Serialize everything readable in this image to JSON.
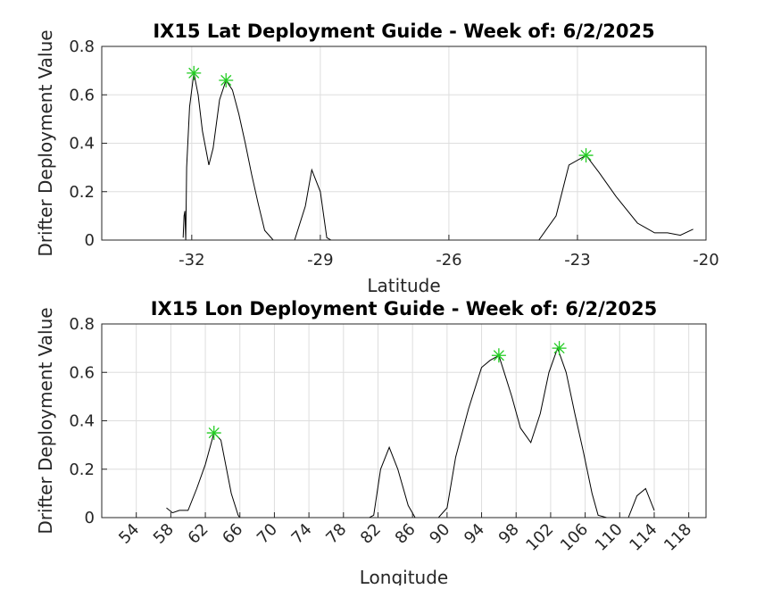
{
  "chart_data": [
    {
      "id": "lat",
      "type": "line",
      "title": "IX15 Lat Deployment Guide - Week of: 6/2/2025",
      "xlabel": "Latitude",
      "ylabel": "Drifter Deployment Value",
      "xlim": [
        -34.1,
        -20
      ],
      "ylim": [
        0,
        0.8
      ],
      "xticks": [
        -32,
        -29,
        -26,
        -23,
        -20
      ],
      "yticks": [
        0,
        0.2,
        0.4,
        0.6,
        0.8
      ],
      "xtick_rotation": 0,
      "grid": true,
      "series": [
        {
          "x": [
            -32.2,
            -32.18,
            -32.16,
            -32.14,
            -32.12,
            -32.05,
            -31.95,
            -31.85,
            -31.75,
            -31.6,
            -31.5,
            -31.35,
            -31.2,
            -31.05,
            -30.9,
            -30.75,
            -30.6,
            -30.45,
            -30.3,
            -30.1,
            -29.6,
            -29.35,
            -29.2,
            -29.0,
            -28.85,
            -28.75,
            -23.9,
            -23.5,
            -23.2,
            -22.8,
            -22.5,
            -22.1,
            -21.6,
            -21.2,
            -20.9,
            -20.6,
            -20.3
          ],
          "y": [
            0.01,
            0.1,
            0.12,
            0.0,
            0.3,
            0.55,
            0.69,
            0.6,
            0.45,
            0.31,
            0.38,
            0.58,
            0.66,
            0.62,
            0.52,
            0.4,
            0.27,
            0.15,
            0.04,
            0.0,
            0.0,
            0.14,
            0.29,
            0.2,
            0.01,
            0.0,
            0.0,
            0.1,
            0.31,
            0.35,
            0.28,
            0.18,
            0.07,
            0.03,
            0.03,
            0.02,
            0.045
          ]
        }
      ],
      "peaks": {
        "x": [
          -31.95,
          -31.2,
          -22.8
        ],
        "y": [
          0.69,
          0.66,
          0.35
        ]
      }
    },
    {
      "id": "lon",
      "type": "line",
      "title": "IX15 Lon Deployment Guide - Week of: 6/2/2025",
      "xlabel": "Longitude",
      "ylabel": "Drifter Deployment Value",
      "xlim": [
        50,
        120
      ],
      "ylim": [
        0,
        0.8
      ],
      "xticks": [
        54,
        58,
        62,
        66,
        70,
        74,
        78,
        82,
        86,
        90,
        94,
        98,
        102,
        106,
        110,
        114,
        118
      ],
      "yticks": [
        0,
        0.2,
        0.4,
        0.6,
        0.8
      ],
      "xtick_rotation": -45,
      "grid": true,
      "series": [
        {
          "x": [
            57.5,
            58.2,
            59,
            60,
            61,
            62,
            63,
            63.8,
            65,
            65.8,
            66,
            81,
            81.5,
            82.3,
            83.3,
            84.3,
            85.5,
            86.3,
            89,
            90,
            91,
            92.5,
            94,
            95,
            96,
            96.8,
            97.5,
            98.5,
            99.7,
            100.8,
            101.8,
            102.8,
            103.8,
            104.8,
            105.8,
            106.8,
            107.5,
            108.5,
            111,
            112,
            113,
            114
          ],
          "y": [
            0.04,
            0.02,
            0.03,
            0.03,
            0.12,
            0.22,
            0.35,
            0.32,
            0.1,
            0.01,
            0.0,
            0.0,
            0.01,
            0.2,
            0.29,
            0.2,
            0.05,
            0.0,
            0.0,
            0.04,
            0.25,
            0.45,
            0.62,
            0.65,
            0.67,
            0.58,
            0.5,
            0.37,
            0.31,
            0.43,
            0.6,
            0.7,
            0.6,
            0.43,
            0.27,
            0.1,
            0.01,
            0.0,
            0.0,
            0.09,
            0.12,
            0.03
          ]
        }
      ],
      "peaks": {
        "x": [
          63,
          96,
          103
        ],
        "y": [
          0.35,
          0.67,
          0.7
        ]
      }
    }
  ]
}
